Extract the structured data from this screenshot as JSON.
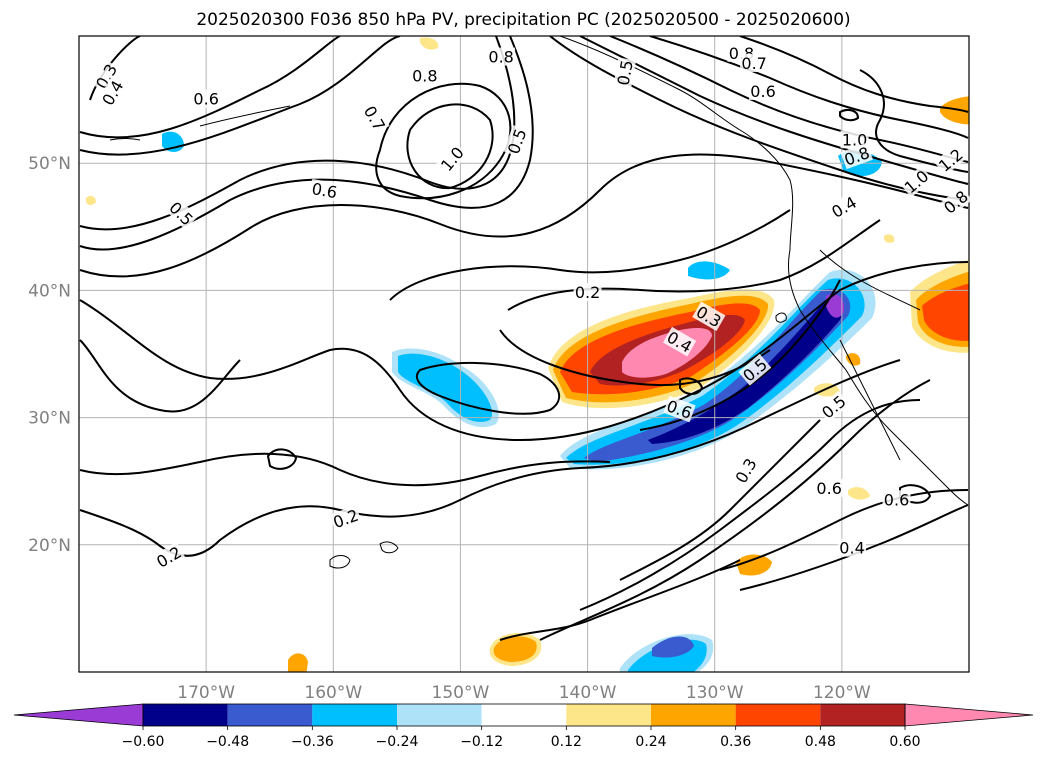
{
  "title": "2025020300 F036 850 hPa PV, precipitation PC (2025020500 - 2025020600)",
  "map": {
    "lon_range": [
      -180,
      -110
    ],
    "lat_range": [
      10,
      60
    ],
    "lon_ticks": [
      {
        "value": -170,
        "label": "170°W"
      },
      {
        "value": -160,
        "label": "160°W"
      },
      {
        "value": -150,
        "label": "150°W"
      },
      {
        "value": -140,
        "label": "140°W"
      },
      {
        "value": -130,
        "label": "130°W"
      },
      {
        "value": -120,
        "label": "120°W"
      }
    ],
    "lat_ticks": [
      {
        "value": 20,
        "label": "20°N"
      },
      {
        "value": 30,
        "label": "30°N"
      },
      {
        "value": 40,
        "label": "40°N"
      },
      {
        "value": 50,
        "label": "50°N"
      }
    ],
    "grid": true,
    "contour_field": "850 hPa PV",
    "shaded_field": "precipitation PC"
  },
  "contour_labels": [
    {
      "text": "0.3",
      "lon": -177.8,
      "lat": 56.8,
      "rot": -60
    },
    {
      "text": "0.4",
      "lon": -177.3,
      "lat": 55.5,
      "rot": -60
    },
    {
      "text": "0.6",
      "lon": -170.0,
      "lat": 55.0,
      "rot": 0
    },
    {
      "text": "0.5",
      "lon": -172.0,
      "lat": 46.0,
      "rot": 45
    },
    {
      "text": "0.6",
      "lon": -160.7,
      "lat": 47.8,
      "rot": 10
    },
    {
      "text": "0.7",
      "lon": -156.8,
      "lat": 53.5,
      "rot": 60
    },
    {
      "text": "0.8",
      "lon": -152.8,
      "lat": 56.8,
      "rot": 0
    },
    {
      "text": "0.8",
      "lon": -146.8,
      "lat": 58.3,
      "rot": 0
    },
    {
      "text": "1.0",
      "lon": -150.6,
      "lat": 50.3,
      "rot": -50
    },
    {
      "text": "0.5",
      "lon": -145.5,
      "lat": 51.7,
      "rot": -70
    },
    {
      "text": "0.5",
      "lon": -137.0,
      "lat": 57.1,
      "rot": -80
    },
    {
      "text": "0.8",
      "lon": -127.9,
      "lat": 58.6,
      "rot": 0
    },
    {
      "text": "0.7",
      "lon": -126.9,
      "lat": 57.8,
      "rot": 0
    },
    {
      "text": "0.6",
      "lon": -126.2,
      "lat": 55.6,
      "rot": 0
    },
    {
      "text": "1.0",
      "lon": -119.0,
      "lat": 51.8,
      "rot": 0
    },
    {
      "text": "0.8",
      "lon": -118.8,
      "lat": 50.5,
      "rot": -20
    },
    {
      "text": "0.4",
      "lon": -119.8,
      "lat": 46.5,
      "rot": -30
    },
    {
      "text": "1.0",
      "lon": -114.1,
      "lat": 48.5,
      "rot": -40
    },
    {
      "text": "0.8",
      "lon": -111.0,
      "lat": 46.9,
      "rot": -40
    },
    {
      "text": "1.2",
      "lon": -111.4,
      "lat": 50.2,
      "rot": -40
    },
    {
      "text": "0.2",
      "lon": -140.0,
      "lat": 39.8,
      "rot": 0
    },
    {
      "text": "0.3",
      "lon": -130.5,
      "lat": 37.9,
      "rot": 30
    },
    {
      "text": "0.4",
      "lon": -132.8,
      "lat": 35.9,
      "rot": 30
    },
    {
      "text": "0.5",
      "lon": -126.8,
      "lat": 33.7,
      "rot": -40
    },
    {
      "text": "0.6",
      "lon": -132.8,
      "lat": 30.6,
      "rot": 20
    },
    {
      "text": "0.3",
      "lon": -127.5,
      "lat": 25.8,
      "rot": -60
    },
    {
      "text": "0.5",
      "lon": -120.6,
      "lat": 30.8,
      "rot": -40
    },
    {
      "text": "0.6",
      "lon": -121.0,
      "lat": 24.4,
      "rot": 0
    },
    {
      "text": "0.6",
      "lon": -115.7,
      "lat": 23.5,
      "rot": 0
    },
    {
      "text": "0.4",
      "lon": -119.2,
      "lat": 19.7,
      "rot": 0
    },
    {
      "text": "0.2",
      "lon": -159.0,
      "lat": 22.0,
      "rot": -20
    },
    {
      "text": "0.2",
      "lon": -172.9,
      "lat": 19.0,
      "rot": -30
    }
  ],
  "colorbar": {
    "levels": [
      "−0.60",
      "−0.48",
      "−0.36",
      "−0.24",
      "−0.12",
      "0.12",
      "0.24",
      "0.36",
      "0.48",
      "0.60"
    ],
    "colors": [
      "#9a3bd6",
      "#00008b",
      "#3a5bd0",
      "#00bfff",
      "#aee2f8",
      "#ffffff",
      "#fde68a",
      "#ffa500",
      "#ff4500",
      "#b22222",
      "#ff88b0"
    ],
    "extend": "both"
  },
  "colors": {
    "contour": "#000000",
    "grid": "#b3b3b3",
    "coast": "#000000"
  }
}
